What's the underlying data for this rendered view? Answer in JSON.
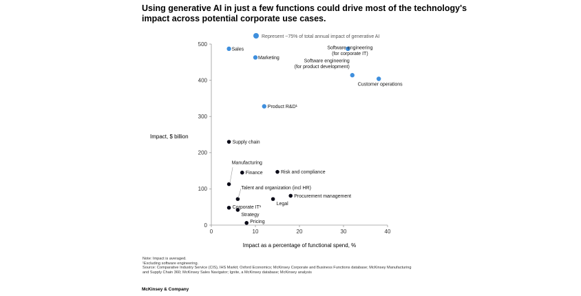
{
  "title_lines": [
    "Using generative AI in just a few functions could drive most of the technology's",
    "impact across potential corporate use cases."
  ],
  "chart_data": {
    "type": "scatter",
    "xlabel": "Impact as a percentage of functional spend, %",
    "ylabel": "Impact, $ billion",
    "xlim": [
      0,
      40
    ],
    "ylim": [
      0,
      500
    ],
    "xticks": [
      0,
      10,
      20,
      30,
      40
    ],
    "yticks": [
      0,
      100,
      200,
      300,
      400,
      500
    ],
    "legend": {
      "label": "Represent ~75% of total annual impact of generative AI",
      "color": "#3f8fdd",
      "position": "top"
    },
    "colors": {
      "highlight": "#3f8fdd",
      "other": "#0b0b18"
    },
    "points": [
      {
        "label": [
          "Sales"
        ],
        "x": 4,
        "y": 487,
        "highlight": true
      },
      {
        "label": [
          "Marketing"
        ],
        "x": 10,
        "y": 463,
        "highlight": true
      },
      {
        "label": [
          "Software engineering",
          "(for corporate IT)"
        ],
        "x": 31,
        "y": 487,
        "highlight": true
      },
      {
        "label": [
          "Software engineering",
          "(for product development)"
        ],
        "x": 32,
        "y": 414,
        "highlight": true
      },
      {
        "label": [
          "Customer operations"
        ],
        "x": 38,
        "y": 404,
        "highlight": true
      },
      {
        "label": [
          "Product R&D¹"
        ],
        "x": 12,
        "y": 328,
        "highlight": true
      },
      {
        "label": [
          "Supply chain"
        ],
        "x": 4,
        "y": 230,
        "highlight": false
      },
      {
        "label": [
          "Manufacturing"
        ],
        "x": 4,
        "y": 113,
        "highlight": false
      },
      {
        "label": [
          "Finance"
        ],
        "x": 7,
        "y": 145,
        "highlight": false
      },
      {
        "label": [
          "Risk and compliance"
        ],
        "x": 15,
        "y": 147,
        "highlight": false
      },
      {
        "label": [
          "Talent and organization (incl HR)"
        ],
        "x": 6,
        "y": 72,
        "highlight": false
      },
      {
        "label": [
          "Procurement management"
        ],
        "x": 18,
        "y": 81,
        "highlight": false
      },
      {
        "label": [
          "Legal"
        ],
        "x": 14,
        "y": 72,
        "highlight": false
      },
      {
        "label": [
          "Corporate IT¹"
        ],
        "x": 4,
        "y": 48,
        "highlight": false
      },
      {
        "label": [
          "Strategy"
        ],
        "x": 6,
        "y": 42,
        "highlight": false
      },
      {
        "label": [
          "Pricing"
        ],
        "x": 8,
        "y": 6,
        "highlight": false
      }
    ]
  },
  "notes": [
    "Note: Impact is averaged.",
    "¹Excluding software engineering.",
    "Source: Comparative Industry Service (CIS), IHS Markit; Oxford Economics; McKinsey Corporate and Business Functions database; McKinsey Manufacturing",
    "and Supply Chain 360; McKinsey Sales Navigator; Ignite, a McKinsey database; McKinsey analysis"
  ],
  "brand": "McKinsey & Company"
}
